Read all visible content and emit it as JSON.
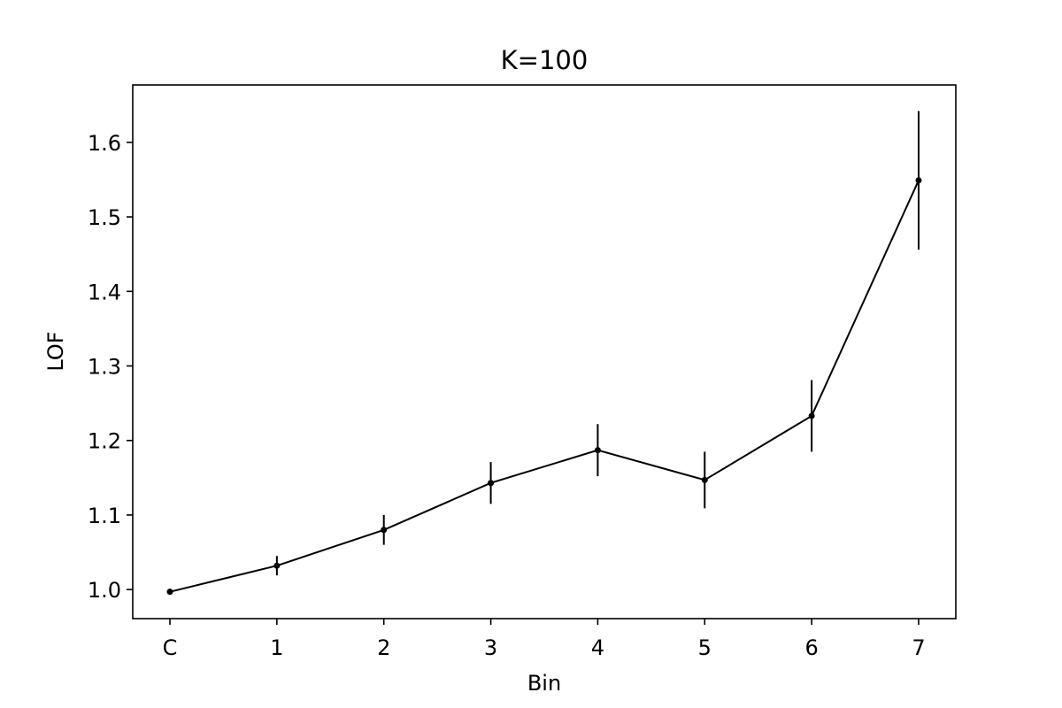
{
  "chart_data": {
    "type": "line",
    "title": "K=100",
    "xlabel": "Bin",
    "ylabel": "LOF",
    "categories": [
      "C",
      "1",
      "2",
      "3",
      "4",
      "5",
      "6",
      "7"
    ],
    "series": [
      {
        "values": [
          0.997,
          1.032,
          1.08,
          1.143,
          1.187,
          1.147,
          1.233,
          1.549
        ],
        "error": [
          0.004,
          0.013,
          0.02,
          0.028,
          0.035,
          0.038,
          0.048,
          0.093
        ],
        "color": "#000000"
      }
    ],
    "ylim": [
      0.961,
      1.677
    ],
    "yticks": [
      1.0,
      1.1,
      1.2,
      1.3,
      1.4,
      1.5,
      1.6
    ],
    "ytick_labels": [
      "1.0",
      "1.1",
      "1.2",
      "1.3",
      "1.4",
      "1.5",
      "1.6"
    ],
    "grid": false,
    "legend": "none"
  }
}
